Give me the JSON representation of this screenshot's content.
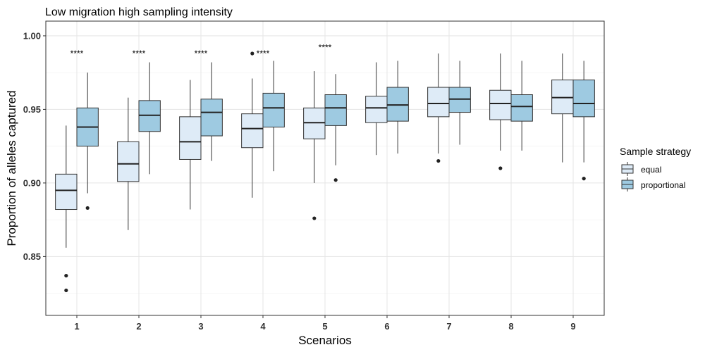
{
  "chart_data": {
    "type": "boxplot",
    "title": "Low migration high sampling intensity",
    "xlabel": "Scenarios",
    "ylabel": "Proportion of alleles captured",
    "ylim": [
      0.81,
      1.01
    ],
    "yticks": [
      "0.85",
      "0.90",
      "0.95",
      "1.00"
    ],
    "ytick_values": [
      0.85,
      0.9,
      0.95,
      1.0
    ],
    "categories": [
      "1",
      "2",
      "3",
      "4",
      "5",
      "6",
      "7",
      "8",
      "9"
    ],
    "grid": true,
    "legend": {
      "title": "Sample strategy",
      "position": "right"
    },
    "series": [
      {
        "name": "equal",
        "color": "#deebf7",
        "boxes": [
          {
            "min": 0.856,
            "q1": 0.882,
            "median": 0.895,
            "q3": 0.906,
            "max": 0.939,
            "outliers": [
              0.837,
              0.827
            ]
          },
          {
            "min": 0.868,
            "q1": 0.901,
            "median": 0.913,
            "q3": 0.928,
            "max": 0.958,
            "outliers": []
          },
          {
            "min": 0.882,
            "q1": 0.916,
            "median": 0.928,
            "q3": 0.945,
            "max": 0.97,
            "outliers": []
          },
          {
            "min": 0.89,
            "q1": 0.924,
            "median": 0.937,
            "q3": 0.947,
            "max": 0.971,
            "outliers": [
              0.988
            ]
          },
          {
            "min": 0.9,
            "q1": 0.93,
            "median": 0.941,
            "q3": 0.951,
            "max": 0.976,
            "outliers": [
              0.876
            ]
          },
          {
            "min": 0.919,
            "q1": 0.941,
            "median": 0.951,
            "q3": 0.959,
            "max": 0.982,
            "outliers": []
          },
          {
            "min": 0.92,
            "q1": 0.945,
            "median": 0.954,
            "q3": 0.965,
            "max": 0.988,
            "outliers": [
              0.915
            ]
          },
          {
            "min": 0.922,
            "q1": 0.943,
            "median": 0.954,
            "q3": 0.963,
            "max": 0.988,
            "outliers": [
              0.91
            ]
          },
          {
            "min": 0.914,
            "q1": 0.947,
            "median": 0.958,
            "q3": 0.97,
            "max": 0.988,
            "outliers": []
          }
        ]
      },
      {
        "name": "proportional",
        "color": "#9ecae1",
        "boxes": [
          {
            "min": 0.893,
            "q1": 0.925,
            "median": 0.938,
            "q3": 0.951,
            "max": 0.975,
            "outliers": [
              0.883
            ]
          },
          {
            "min": 0.906,
            "q1": 0.935,
            "median": 0.946,
            "q3": 0.956,
            "max": 0.982,
            "outliers": []
          },
          {
            "min": 0.915,
            "q1": 0.932,
            "median": 0.948,
            "q3": 0.957,
            "max": 0.982,
            "outliers": []
          },
          {
            "min": 0.908,
            "q1": 0.938,
            "median": 0.951,
            "q3": 0.961,
            "max": 0.983,
            "outliers": []
          },
          {
            "min": 0.912,
            "q1": 0.939,
            "median": 0.951,
            "q3": 0.96,
            "max": 0.974,
            "outliers": [
              0.902
            ]
          },
          {
            "min": 0.92,
            "q1": 0.942,
            "median": 0.953,
            "q3": 0.965,
            "max": 0.983,
            "outliers": []
          },
          {
            "min": 0.926,
            "q1": 0.948,
            "median": 0.957,
            "q3": 0.965,
            "max": 0.983,
            "outliers": []
          },
          {
            "min": 0.922,
            "q1": 0.942,
            "median": 0.952,
            "q3": 0.96,
            "max": 0.983,
            "outliers": []
          },
          {
            "min": 0.914,
            "q1": 0.945,
            "median": 0.954,
            "q3": 0.97,
            "max": 0.983,
            "outliers": [
              0.903
            ]
          }
        ]
      }
    ],
    "annotations": [
      {
        "category": "1",
        "text": "****",
        "y": 0.988
      },
      {
        "category": "2",
        "text": "****",
        "y": 0.988
      },
      {
        "category": "3",
        "text": "****",
        "y": 0.988
      },
      {
        "category": "4",
        "text": "****",
        "y": 0.988
      },
      {
        "category": "5",
        "text": "****",
        "y": 0.992
      }
    ]
  }
}
